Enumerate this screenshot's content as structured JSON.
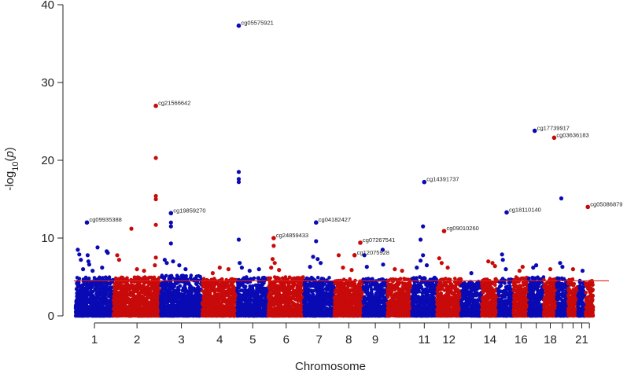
{
  "chart_data": {
    "type": "scatter",
    "subtype": "manhattan",
    "title": "",
    "xlabel": "Chromosome",
    "ylabel_prefix": "-log",
    "ylabel_sub": "10",
    "ylabel_mid": "(",
    "ylabel_var": "p",
    "ylabel_suffix": ")",
    "ylim": [
      0,
      40
    ],
    "yticks": [
      0,
      10,
      20,
      30,
      40
    ],
    "threshold": 4.5,
    "colors": {
      "odd": "#0a0ab4",
      "even": "#c80a0a",
      "threshold": "#e02020",
      "axis": "#222222"
    },
    "chromosomes": [
      {
        "chr": 1,
        "tick_label": "1",
        "baseline_max": 5.0
      },
      {
        "chr": 2,
        "tick_label": "2",
        "baseline_max": 5.0
      },
      {
        "chr": 3,
        "tick_label": "3",
        "baseline_max": 5.2
      },
      {
        "chr": 4,
        "tick_label": "4",
        "baseline_max": 4.8
      },
      {
        "chr": 5,
        "tick_label": "5",
        "baseline_max": 5.0
      },
      {
        "chr": 6,
        "tick_label": "6",
        "baseline_max": 5.0
      },
      {
        "chr": 7,
        "tick_label": "7",
        "baseline_max": 5.0
      },
      {
        "chr": 8,
        "tick_label": "8",
        "baseline_max": 4.8
      },
      {
        "chr": 9,
        "tick_label": "9",
        "baseline_max": 4.8
      },
      {
        "chr": 10,
        "tick_label": "",
        "baseline_max": 4.8
      },
      {
        "chr": 11,
        "tick_label": "11",
        "baseline_max": 5.0
      },
      {
        "chr": 12,
        "tick_label": "12",
        "baseline_max": 4.8
      },
      {
        "chr": 13,
        "tick_label": "",
        "baseline_max": 4.5
      },
      {
        "chr": 14,
        "tick_label": "14",
        "baseline_max": 4.8
      },
      {
        "chr": 15,
        "tick_label": "",
        "baseline_max": 4.8
      },
      {
        "chr": 16,
        "tick_label": "16",
        "baseline_max": 5.0
      },
      {
        "chr": 17,
        "tick_label": "",
        "baseline_max": 5.0
      },
      {
        "chr": 18,
        "tick_label": "18",
        "baseline_max": 4.8
      },
      {
        "chr": 19,
        "tick_label": "",
        "baseline_max": 5.0
      },
      {
        "chr": 20,
        "tick_label": "",
        "baseline_max": 4.8
      },
      {
        "chr": 21,
        "tick_label": "21",
        "baseline_max": 4.6
      },
      {
        "chr": 22,
        "tick_label": "",
        "baseline_max": 4.6
      }
    ],
    "points": [
      {
        "chr": 1,
        "pos": 0.06,
        "y": 8.5
      },
      {
        "chr": 1,
        "pos": 0.1,
        "y": 7.9
      },
      {
        "chr": 1,
        "pos": 0.14,
        "y": 7.2
      },
      {
        "chr": 1,
        "pos": 0.32,
        "y": 7.8
      },
      {
        "chr": 1,
        "pos": 0.34,
        "y": 7.0
      },
      {
        "chr": 1,
        "pos": 0.36,
        "y": 6.6
      },
      {
        "chr": 1,
        "pos": 0.58,
        "y": 8.8
      },
      {
        "chr": 1,
        "pos": 0.82,
        "y": 8.3
      },
      {
        "chr": 1,
        "pos": 0.85,
        "y": 8.1
      },
      {
        "chr": 1,
        "pos": 0.2,
        "y": 6.0
      },
      {
        "chr": 1,
        "pos": 0.45,
        "y": 5.8
      },
      {
        "chr": 1,
        "pos": 0.7,
        "y": 6.2
      },
      {
        "chr": 2,
        "pos": 0.08,
        "y": 7.8
      },
      {
        "chr": 2,
        "pos": 0.12,
        "y": 7.2
      },
      {
        "chr": 2,
        "pos": 0.38,
        "y": 11.2
      },
      {
        "chr": 2,
        "pos": 0.5,
        "y": 6.0
      },
      {
        "chr": 2,
        "pos": 0.65,
        "y": 5.8
      },
      {
        "chr": 2,
        "pos": 0.9,
        "y": 20.3
      },
      {
        "chr": 2,
        "pos": 0.9,
        "y": 15.4
      },
      {
        "chr": 2,
        "pos": 0.9,
        "y": 15.0
      },
      {
        "chr": 2,
        "pos": 0.9,
        "y": 11.7
      },
      {
        "chr": 2,
        "pos": 0.9,
        "y": 7.5
      },
      {
        "chr": 2,
        "pos": 0.88,
        "y": 6.5
      },
      {
        "chr": 3,
        "pos": 0.25,
        "y": 12.0
      },
      {
        "chr": 3,
        "pos": 0.25,
        "y": 11.5
      },
      {
        "chr": 3,
        "pos": 0.25,
        "y": 9.3
      },
      {
        "chr": 3,
        "pos": 0.1,
        "y": 7.2
      },
      {
        "chr": 3,
        "pos": 0.15,
        "y": 6.8
      },
      {
        "chr": 3,
        "pos": 0.3,
        "y": 7.0
      },
      {
        "chr": 3,
        "pos": 0.45,
        "y": 6.5
      },
      {
        "chr": 3,
        "pos": 0.6,
        "y": 6.0
      },
      {
        "chr": 4,
        "pos": 0.5,
        "y": 6.2
      },
      {
        "chr": 4,
        "pos": 0.75,
        "y": 6.0
      },
      {
        "chr": 4,
        "pos": 0.3,
        "y": 5.5
      },
      {
        "chr": 5,
        "pos": 0.05,
        "y": 18.5
      },
      {
        "chr": 5,
        "pos": 0.05,
        "y": 17.6
      },
      {
        "chr": 5,
        "pos": 0.05,
        "y": 17.2
      },
      {
        "chr": 5,
        "pos": 0.05,
        "y": 9.8
      },
      {
        "chr": 5,
        "pos": 0.08,
        "y": 6.8
      },
      {
        "chr": 5,
        "pos": 0.15,
        "y": 6.2
      },
      {
        "chr": 5,
        "pos": 0.4,
        "y": 5.8
      },
      {
        "chr": 5,
        "pos": 0.7,
        "y": 6.0
      },
      {
        "chr": 6,
        "pos": 0.15,
        "y": 9.0
      },
      {
        "chr": 6,
        "pos": 0.12,
        "y": 7.3
      },
      {
        "chr": 6,
        "pos": 0.18,
        "y": 6.8
      },
      {
        "chr": 6,
        "pos": 0.08,
        "y": 6.2
      },
      {
        "chr": 6,
        "pos": 0.3,
        "y": 5.9
      },
      {
        "chr": 7,
        "pos": 0.4,
        "y": 9.6
      },
      {
        "chr": 7,
        "pos": 0.3,
        "y": 7.6
      },
      {
        "chr": 7,
        "pos": 0.45,
        "y": 7.3
      },
      {
        "chr": 7,
        "pos": 0.55,
        "y": 6.8
      },
      {
        "chr": 7,
        "pos": 0.2,
        "y": 6.3
      },
      {
        "chr": 8,
        "pos": 0.15,
        "y": 7.8
      },
      {
        "chr": 8,
        "pos": 0.3,
        "y": 6.2
      },
      {
        "chr": 8,
        "pos": 0.6,
        "y": 5.9
      },
      {
        "chr": 9,
        "pos": 0.05,
        "y": 7.8
      },
      {
        "chr": 9,
        "pos": 0.15,
        "y": 6.3
      },
      {
        "chr": 9,
        "pos": 0.8,
        "y": 8.5
      },
      {
        "chr": 9,
        "pos": 0.82,
        "y": 6.6
      },
      {
        "chr": 10,
        "pos": 0.3,
        "y": 6.0
      },
      {
        "chr": 10,
        "pos": 0.6,
        "y": 5.8
      },
      {
        "chr": 11,
        "pos": 0.35,
        "y": 9.8
      },
      {
        "chr": 11,
        "pos": 0.45,
        "y": 11.5
      },
      {
        "chr": 11,
        "pos": 0.45,
        "y": 7.8
      },
      {
        "chr": 11,
        "pos": 0.35,
        "y": 7.1
      },
      {
        "chr": 11,
        "pos": 0.6,
        "y": 6.5
      },
      {
        "chr": 11,
        "pos": 0.2,
        "y": 6.2
      },
      {
        "chr": 12,
        "pos": 0.1,
        "y": 7.4
      },
      {
        "chr": 12,
        "pos": 0.2,
        "y": 6.8
      },
      {
        "chr": 12,
        "pos": 0.45,
        "y": 6.2
      },
      {
        "chr": 13,
        "pos": 0.5,
        "y": 5.5
      },
      {
        "chr": 14,
        "pos": 0.4,
        "y": 7.0
      },
      {
        "chr": 14,
        "pos": 0.65,
        "y": 6.8
      },
      {
        "chr": 14,
        "pos": 0.8,
        "y": 6.4
      },
      {
        "chr": 15,
        "pos": 0.25,
        "y": 7.9
      },
      {
        "chr": 15,
        "pos": 0.3,
        "y": 7.2
      },
      {
        "chr": 15,
        "pos": 0.5,
        "y": 6.0
      },
      {
        "chr": 16,
        "pos": 0.6,
        "y": 6.3
      },
      {
        "chr": 16,
        "pos": 0.4,
        "y": 5.8
      },
      {
        "chr": 17,
        "pos": 0.5,
        "y": 6.5
      },
      {
        "chr": 17,
        "pos": 0.3,
        "y": 6.2
      },
      {
        "chr": 18,
        "pos": 0.5,
        "y": 6.0
      },
      {
        "chr": 19,
        "pos": 0.4,
        "y": 15.1
      },
      {
        "chr": 19,
        "pos": 0.3,
        "y": 6.8
      },
      {
        "chr": 19,
        "pos": 0.5,
        "y": 6.3
      },
      {
        "chr": 20,
        "pos": 0.5,
        "y": 6.0
      },
      {
        "chr": 21,
        "pos": 0.6,
        "y": 5.8
      }
    ],
    "annotated_points": [
      {
        "chr": 1,
        "pos": 0.3,
        "y": 12.0,
        "label": "cg09935388"
      },
      {
        "chr": 2,
        "pos": 0.9,
        "y": 27.0,
        "label": "cg21566642"
      },
      {
        "chr": 3,
        "pos": 0.25,
        "y": 13.2,
        "label": "cg19859270"
      },
      {
        "chr": 5,
        "pos": 0.05,
        "y": 37.3,
        "label": "cg05575921"
      },
      {
        "chr": 6,
        "pos": 0.15,
        "y": 10.0,
        "label": "cg24859433"
      },
      {
        "chr": 7,
        "pos": 0.4,
        "y": 12.0,
        "label": "cg04182427"
      },
      {
        "chr": 8,
        "pos": 0.9,
        "y": 9.4,
        "label": "cg07267541"
      },
      {
        "chr": 8,
        "pos": 0.7,
        "y": 7.8,
        "label": "cg12075928"
      },
      {
        "chr": 11,
        "pos": 0.5,
        "y": 17.2,
        "label": "cg14391737"
      },
      {
        "chr": 12,
        "pos": 0.3,
        "y": 10.9,
        "label": "cg09010260"
      },
      {
        "chr": 15,
        "pos": 0.55,
        "y": 13.3,
        "label": "cg18110140"
      },
      {
        "chr": 17,
        "pos": 0.4,
        "y": 23.8,
        "label": "cg17739917"
      },
      {
        "chr": 18,
        "pos": 0.8,
        "y": 22.9,
        "label": "cg03636183"
      },
      {
        "chr": 22,
        "pos": 0.3,
        "y": 14.0,
        "label": "cg05086879"
      }
    ]
  }
}
